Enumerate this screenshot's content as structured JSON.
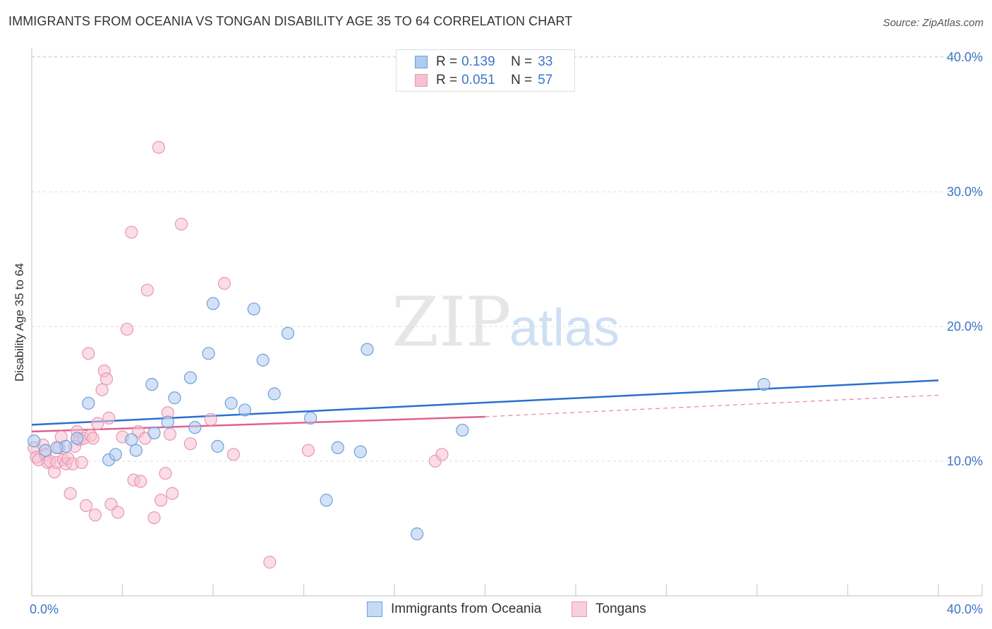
{
  "header": {
    "title": "IMMIGRANTS FROM OCEANIA VS TONGAN DISABILITY AGE 35 TO 64 CORRELATION CHART",
    "source": "Source: ZipAtlas.com"
  },
  "watermark": {
    "zip": "ZIP",
    "atlas": "atlas"
  },
  "stats_legend": [
    {
      "r_label": "R =",
      "r_value": "0.139",
      "n_label": "N =",
      "n_value": "33"
    },
    {
      "r_label": "R =",
      "r_value": "0.051",
      "n_label": "N =",
      "n_value": "57"
    }
  ],
  "chart_data": {
    "type": "scatter",
    "title": "IMMIGRANTS FROM OCEANIA VS TONGAN DISABILITY AGE 35 TO 64 CORRELATION CHART",
    "xlabel": "",
    "ylabel": "Disability Age 35 to 64",
    "xlim": [
      0,
      40
    ],
    "ylim": [
      0,
      41
    ],
    "x_tick_labels": [
      "0.0%",
      "40.0%"
    ],
    "y_ticks": [
      10,
      20,
      30,
      40
    ],
    "y_tick_labels": [
      "10.0%",
      "20.0%",
      "30.0%",
      "40.0%"
    ],
    "grid": true,
    "colors": {
      "oceania_fill": "#aecbf0",
      "oceania_stroke": "#6f9fd8",
      "oceania_line": "#2a6fcf",
      "tongan_fill": "#f6c1d2",
      "tongan_stroke": "#e996b2",
      "tongan_line": "#e0628e",
      "axis_text": "#3d75c7"
    },
    "series": [
      {
        "name": "Immigrants from Oceania",
        "x": [
          0.1,
          0.6,
          1.5,
          2.0,
          2.5,
          3.4,
          3.7,
          4.4,
          4.6,
          5.3,
          5.4,
          6.0,
          6.3,
          7.0,
          7.2,
          7.8,
          8.0,
          8.8,
          8.2,
          9.4,
          9.8,
          10.2,
          10.7,
          11.3,
          12.3,
          13.0,
          13.5,
          14.5,
          14.8,
          17.0,
          19.0,
          32.3,
          1.1
        ],
        "y": [
          11.5,
          10.8,
          11.1,
          11.7,
          14.3,
          10.1,
          10.5,
          11.6,
          10.8,
          15.7,
          12.1,
          12.9,
          14.7,
          16.2,
          12.5,
          18.0,
          21.7,
          14.3,
          11.1,
          13.8,
          21.3,
          17.5,
          15.0,
          19.5,
          13.2,
          7.1,
          11.0,
          10.7,
          18.3,
          4.6,
          12.3,
          15.7,
          11.0
        ]
      },
      {
        "name": "Tongans",
        "x": [
          0.1,
          0.2,
          0.3,
          0.5,
          0.6,
          0.7,
          0.8,
          1.0,
          1.1,
          1.2,
          1.3,
          1.4,
          1.5,
          1.6,
          1.7,
          1.8,
          1.9,
          2.0,
          2.1,
          2.2,
          2.3,
          2.4,
          2.5,
          2.6,
          2.7,
          2.8,
          2.9,
          3.1,
          3.2,
          3.3,
          3.4,
          3.5,
          3.8,
          4.0,
          4.2,
          4.4,
          4.5,
          4.7,
          4.8,
          5.0,
          5.1,
          5.4,
          5.6,
          5.7,
          5.9,
          6.0,
          6.1,
          6.2,
          6.6,
          7.0,
          7.9,
          8.5,
          8.9,
          10.5,
          12.2,
          17.8,
          18.1
        ],
        "y": [
          11.0,
          10.3,
          10.1,
          11.2,
          10.5,
          9.9,
          10.0,
          9.2,
          9.9,
          11.0,
          11.8,
          10.1,
          9.8,
          10.2,
          7.6,
          9.8,
          11.1,
          12.2,
          11.6,
          9.9,
          11.7,
          6.7,
          18.0,
          11.9,
          11.7,
          6.0,
          12.8,
          15.3,
          16.7,
          16.1,
          13.2,
          6.8,
          6.2,
          11.8,
          19.8,
          27.0,
          8.6,
          12.2,
          8.5,
          11.7,
          22.7,
          5.8,
          33.3,
          7.1,
          9.1,
          13.6,
          12.0,
          7.6,
          27.6,
          11.3,
          13.1,
          23.2,
          10.5,
          2.5,
          10.8,
          10.0,
          10.5
        ]
      }
    ],
    "trend_lines": [
      {
        "series": "Immigrants from Oceania",
        "x": [
          0,
          40
        ],
        "y": [
          12.7,
          16.0
        ]
      },
      {
        "series": "Tongans",
        "x": [
          0,
          20
        ],
        "y": [
          12.2,
          13.3
        ]
      },
      {
        "series": "Tongans (extrapolated)",
        "x": [
          20,
          40
        ],
        "y": [
          13.3,
          14.9
        ]
      }
    ]
  }
}
